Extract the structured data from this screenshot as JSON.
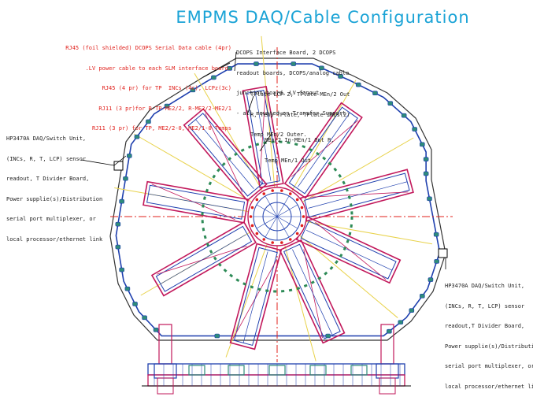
{
  "title": "EMPMS DAQ/Cable Configuration",
  "notes": {
    "cables": [
      "RJ45 (foil shielded) DCOPS Serial Data cable (4pr)",
      ".LV power cable to each SLM interface board.",
      "RJ45 (4 pr) for TP  INCs (4c), LCPz(3c)",
      "RJ11 (3 pr)for R-TP-ME2/2, R-ME2/2-ME2/1",
      "RJ11 (3 pr) for TP, ME2/2-0, ME2/1-0 Temps"
    ],
    "dcops_board": [
      "DCOPS Interface Board, 2 DCOPS",
      "readout boards, DCOPS/analog cable",
      "junction board, LV fanout",
      "- all mounted on Transfer Support"
    ],
    "tplate": [
      "TPlate LCP Z, TPlate-MEn/2 Out",
      "R, Temp TPlate, TPlate INCs(2)",
      "Temp MEn/2 Outer."
    ],
    "men": [
      "MEn/2 In-MEn/1 Out R,",
      "Temp MEn/1 Out"
    ],
    "daq_left": [
      "HP3470A DAQ/Switch Unit,",
      "(INCs, R, T, LCP) sensor",
      "readout, T Divider Board,",
      "Power supplie(s)/Distribution",
      "serial port multiplexer, or",
      "local processor/ethernet link"
    ],
    "daq_right": [
      "HP3470A DAQ/Switch Unit,",
      "(INCs, R, T, LCP) sensor",
      "readout,T Divider Board,",
      "Power supplie(s)/Distribution",
      "serial port multiplexer, or",
      "local processor/ethernet link"
    ]
  },
  "colors": {
    "title": "#1aa3d6",
    "cable_note": "#e0201b",
    "chamber_outline": "#c2185b",
    "cable_route": "#1e3fae",
    "module": "#2e8b7a",
    "inner_dash": "#2e8b57",
    "axis": "#e0201b",
    "beam": "#e8d24a",
    "frame": "#333333"
  }
}
